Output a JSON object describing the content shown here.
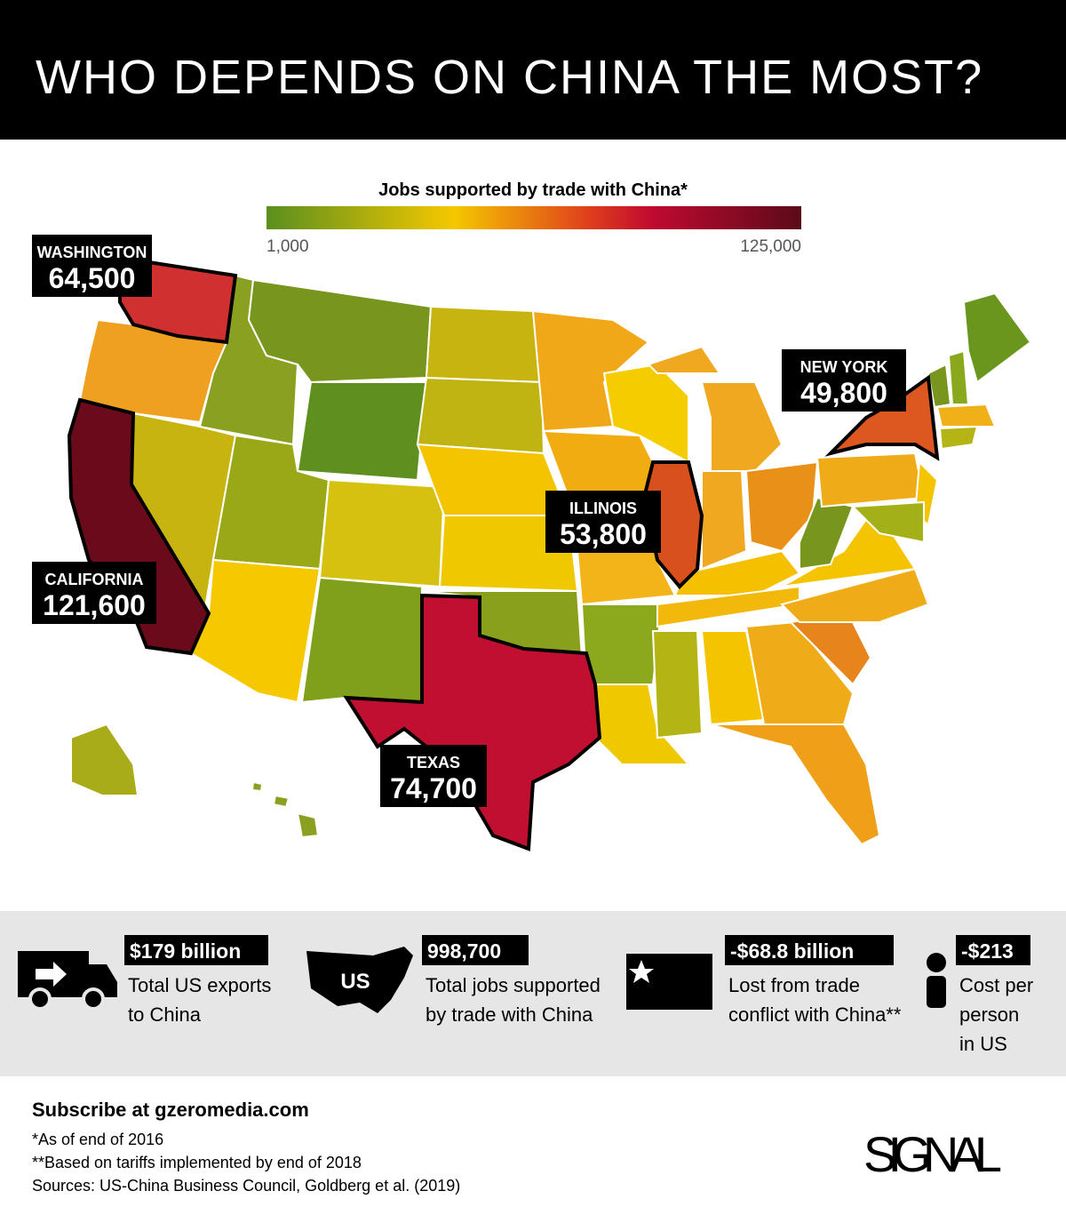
{
  "header": {
    "title": "WHO DEPENDS ON CHINA THE MOST?"
  },
  "legend": {
    "title": "Jobs supported by trade with China*",
    "min_label": "1,000",
    "max_label": "125,000"
  },
  "callouts": [
    {
      "state": "WASHINGTON",
      "value": "64,500"
    },
    {
      "state": "CALIFORNIA",
      "value": "121,600"
    },
    {
      "state": "TEXAS",
      "value": "74,700"
    },
    {
      "state": "ILLINOIS",
      "value": "53,800"
    },
    {
      "state": "NEW YORK",
      "value": "49,800"
    }
  ],
  "stats": [
    {
      "value": "$179 billion",
      "label_lines": [
        "Total US exports",
        "to China"
      ]
    },
    {
      "icon_text": "US",
      "value": "998,700",
      "label_lines": [
        "Total jobs supported",
        "by trade with China"
      ]
    },
    {
      "value": "-$68.8 billion",
      "label_lines": [
        "Lost from trade",
        "conflict with China**"
      ]
    },
    {
      "value": "-$213",
      "label_lines": [
        "Cost per",
        "person",
        "in US"
      ]
    }
  ],
  "footer": {
    "subscribe": "Subscribe at gzeromedia.com",
    "notes": [
      "*As of end of 2016",
      "**Based on tariffs implemented by end of 2018",
      "Sources: US-China Business Council, Goldberg et al. (2019)"
    ],
    "brand": "SIGNAL"
  }
}
